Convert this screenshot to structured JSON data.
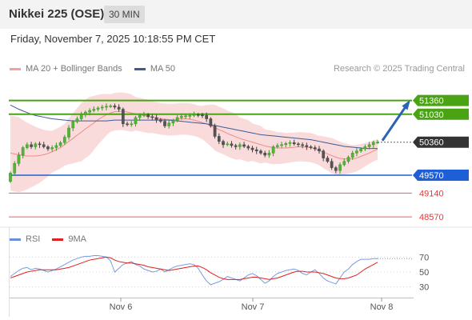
{
  "header": {
    "title": "Nikkei 225 (OSE)",
    "timeframe": "30 MIN",
    "datetime": "Friday, November 7, 2025 10:18:55 PM CET"
  },
  "legend": {
    "items": [
      {
        "label": "MA 20 + Bollinger Bands",
        "color": "#f4a0a0"
      },
      {
        "label": "MA 50",
        "color": "#3d5a99"
      }
    ],
    "credit": "Research © 2025 Trading Central"
  },
  "rsi_legend": {
    "items": [
      {
        "label": "RSI",
        "color": "#6b8fd6"
      },
      {
        "label": "9MA",
        "color": "#e02020"
      }
    ]
  },
  "chart_data": [
    {
      "type": "candlestick",
      "ylim": [
        48400,
        51850
      ],
      "x_ticks": [
        "Nov 6",
        "Nov 7",
        "Nov 8"
      ],
      "levels": [
        {
          "value": 51360,
          "label": "51360",
          "kind": "resistance",
          "color": "#4aa312"
        },
        {
          "value": 51030,
          "label": "51030",
          "kind": "resistance",
          "color": "#4aa312"
        },
        {
          "value": 50360,
          "label": "50360",
          "kind": "last",
          "color": "#333333"
        },
        {
          "value": 49570,
          "label": "49570",
          "kind": "pivot",
          "color": "#1f5fd6"
        },
        {
          "value": 49140,
          "label": "49140",
          "kind": "support",
          "color": "#e33b3b"
        },
        {
          "value": 48570,
          "label": "48570",
          "kind": "support",
          "color": "#e33b3b"
        }
      ],
      "close": [
        49620,
        49850,
        50050,
        50230,
        50300,
        50250,
        50320,
        50300,
        50250,
        50200,
        50230,
        50280,
        50350,
        50480,
        50700,
        50850,
        50920,
        51020,
        51080,
        51120,
        51150,
        51180,
        51200,
        51220,
        51230,
        51200,
        51150,
        50800,
        50780,
        50800,
        50950,
        51000,
        51020,
        50970,
        50950,
        50900,
        50860,
        50750,
        50820,
        50880,
        50950,
        50980,
        50990,
        51000,
        51020,
        51010,
        51000,
        50920,
        50750,
        50500,
        50380,
        50300,
        50320,
        50280,
        50250,
        50300,
        50260,
        50220,
        50180,
        50150,
        50100,
        50050,
        50100,
        50250,
        50280,
        50300,
        50330,
        50350,
        50320,
        50300,
        50280,
        50250,
        50230,
        50200,
        50150,
        49980,
        49900,
        49750,
        49680,
        49820,
        49900,
        50000,
        50100,
        50150,
        50200,
        50250,
        50300,
        50360,
        50360
      ],
      "ma20": [
        50100,
        50080,
        50060,
        50040,
        50030,
        50030,
        50030,
        50040,
        50060,
        50090,
        50130,
        50180,
        50230,
        50300,
        50380,
        50450,
        50530,
        50600,
        50680,
        50750,
        50820,
        50900,
        50960,
        51020,
        51060,
        51090,
        51100,
        51100,
        51080,
        51060,
        51040,
        51020,
        51000,
        50980,
        50960,
        50940,
        50920,
        50910,
        50900,
        50900,
        50910,
        50920,
        50920,
        50910,
        50890,
        50860,
        50830,
        50800,
        50760,
        50710,
        50660,
        50620,
        50570,
        50530,
        50490,
        50450,
        50420,
        50390,
        50360,
        50330,
        50300,
        50270,
        50250,
        50230,
        50220,
        50220,
        50220,
        50230,
        50240,
        50250,
        50250,
        50240,
        50230,
        50200,
        50160,
        50120,
        50080,
        50040,
        50000,
        49970,
        49960,
        49960,
        49960,
        49980,
        50020,
        50060,
        50100,
        50150,
        50190
      ],
      "ma50": [
        51250,
        51200,
        51150,
        51110,
        51070,
        51030,
        51000,
        50980,
        50960,
        50940,
        50920,
        50910,
        50900,
        50890,
        50880,
        50870,
        50870,
        50870,
        50870,
        50870,
        50870,
        50870,
        50870,
        50870,
        50880,
        50890,
        50890,
        50890,
        50890,
        50890,
        50890,
        50890,
        50890,
        50890,
        50890,
        50890,
        50890,
        50890,
        50890,
        50880,
        50870,
        50860,
        50850,
        50840,
        50830,
        50820,
        50810,
        50800,
        50780,
        50760,
        50740,
        50720,
        50700,
        50680,
        50660,
        50640,
        50620,
        50600,
        50580,
        50560,
        50540,
        50530,
        50520,
        50510,
        50500,
        50490,
        50480,
        50470,
        50460,
        50450,
        50440,
        50430,
        50420,
        50400,
        50380,
        50360,
        50340,
        50320,
        50300,
        50280,
        50260,
        50250,
        50240,
        50230,
        50220,
        50210,
        50210,
        50210,
        50210
      ],
      "bb_width": [
        900,
        900,
        900,
        850,
        800,
        750,
        700,
        650,
        600,
        550,
        500,
        500,
        500,
        500,
        550,
        600,
        650,
        700,
        700,
        700,
        650,
        600,
        550,
        500,
        450,
        450,
        450,
        450,
        450,
        450,
        400,
        400,
        400,
        400,
        380,
        380,
        380,
        380,
        380,
        380,
        380,
        380,
        380,
        380,
        380,
        380,
        400,
        450,
        500,
        550,
        550,
        550,
        550,
        550,
        550,
        500,
        500,
        500,
        450,
        450,
        450,
        400,
        400,
        400,
        380,
        380,
        360,
        360,
        350,
        350,
        350,
        350,
        350,
        350,
        350,
        380,
        400,
        420,
        420,
        400,
        380,
        350,
        330,
        320,
        300,
        280,
        260,
        250,
        250
      ],
      "forecast_target": 51360
    },
    {
      "type": "line",
      "name": "RSI",
      "ylim": [
        20,
        80
      ],
      "y_ticks": [
        70,
        50,
        30
      ],
      "rsi": [
        44,
        48,
        52,
        55,
        56,
        53,
        55,
        54,
        52,
        50,
        52,
        54,
        57,
        60,
        63,
        66,
        68,
        70,
        71,
        71,
        72,
        72,
        71,
        70,
        65,
        50,
        55,
        60,
        62,
        64,
        60,
        58,
        54,
        52,
        50,
        51,
        54,
        50,
        53,
        56,
        58,
        59,
        60,
        61,
        60,
        55,
        46,
        38,
        33,
        35,
        37,
        40,
        44,
        42,
        40,
        38,
        42,
        46,
        48,
        45,
        40,
        35,
        38,
        44,
        48,
        50,
        52,
        53,
        54,
        52,
        48,
        46,
        50,
        53,
        48,
        42,
        38,
        36,
        34,
        42,
        50,
        54,
        60,
        64,
        67,
        67,
        67,
        68,
        68
      ],
      "ma9": [
        42,
        44,
        46,
        48,
        50,
        51,
        52,
        53,
        53,
        53,
        53,
        53,
        54,
        55,
        56,
        58,
        60,
        62,
        64,
        66,
        67,
        68,
        69,
        70,
        69,
        66,
        64,
        63,
        62,
        62,
        61,
        60,
        59,
        57,
        56,
        55,
        54,
        53,
        52,
        53,
        54,
        55,
        56,
        57,
        58,
        58,
        56,
        53,
        49,
        46,
        43,
        41,
        40,
        40,
        40,
        40,
        41,
        42,
        43,
        43,
        42,
        41,
        40,
        41,
        42,
        44,
        46,
        48,
        50,
        51,
        51,
        50,
        50,
        50,
        49,
        48,
        46,
        44,
        42,
        41,
        41,
        42,
        44,
        46,
        50,
        54,
        57,
        60,
        63
      ]
    }
  ]
}
